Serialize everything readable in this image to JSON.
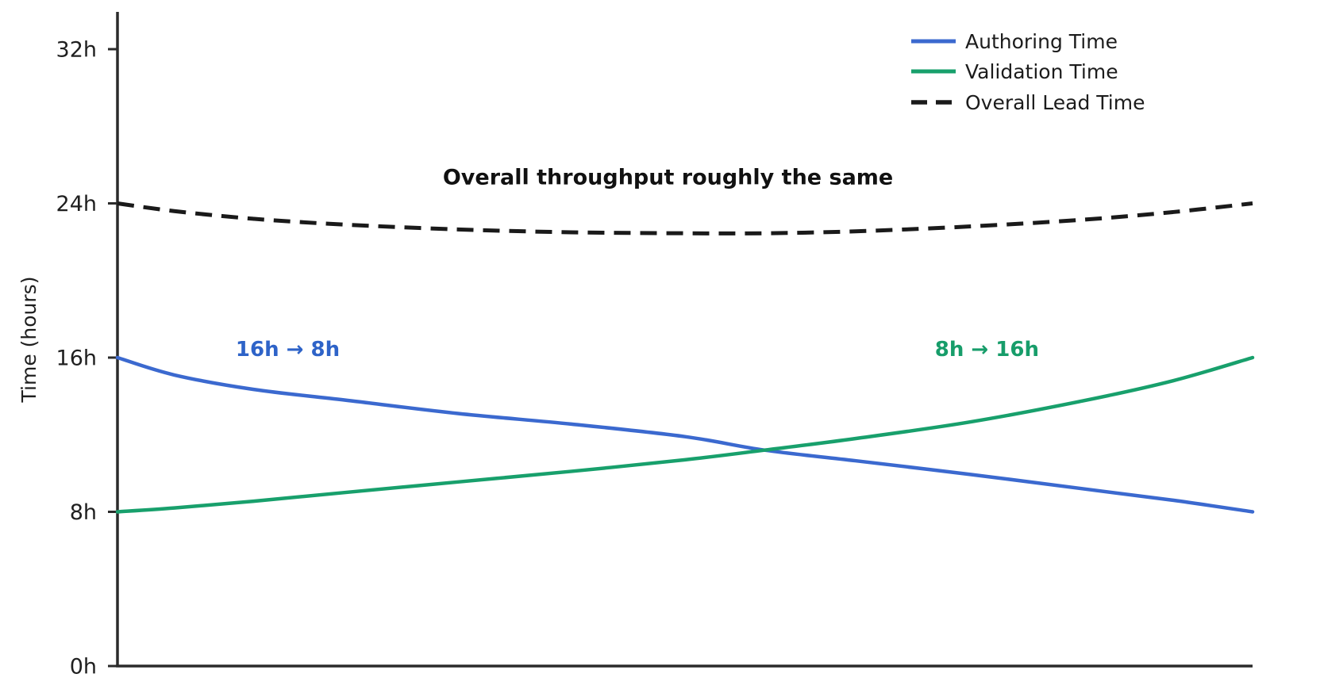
{
  "chart_data": {
    "type": "line",
    "ylabel": "Time (hours)",
    "ylim": [
      0,
      34
    ],
    "grid": false,
    "legend_position": "top-right",
    "yticks": [
      {
        "label": "0h",
        "hours": 0
      },
      {
        "label": "8h",
        "hours": 8
      },
      {
        "label": "16h",
        "hours": 16
      },
      {
        "label": "24h",
        "hours": 24
      },
      {
        "label": "32h",
        "hours": 32
      }
    ],
    "x_pct": [
      0,
      5,
      12,
      20,
      30,
      40,
      50,
      57,
      65,
      75,
      85,
      93,
      100
    ],
    "series": [
      {
        "name": "Authoring Time",
        "color": "#3b69cf",
        "dashed": false,
        "values": [
          16.0,
          15.1,
          14.35,
          13.8,
          13.1,
          12.55,
          11.9,
          11.2,
          10.65,
          9.95,
          9.2,
          8.6,
          8.0
        ]
      },
      {
        "name": "Validation Time",
        "color": "#18a06c",
        "dashed": false,
        "values": [
          8.0,
          8.2,
          8.55,
          9.0,
          9.55,
          10.1,
          10.7,
          11.2,
          11.8,
          12.65,
          13.75,
          14.8,
          16.0
        ]
      },
      {
        "name": "Overall Lead Time",
        "color": "#1a1a1a",
        "dashed": true,
        "values": [
          24.0,
          23.6,
          23.2,
          22.9,
          22.65,
          22.5,
          22.45,
          22.45,
          22.55,
          22.8,
          23.15,
          23.55,
          24.0
        ]
      }
    ],
    "annotations": [
      {
        "text": "16h → 8h",
        "color": "#2e63c8",
        "x_pct": 15.0,
        "hours": 16.45
      },
      {
        "text": "8h → 16h",
        "color": "#179d6a",
        "x_pct": 76.6,
        "hours": 16.45
      },
      {
        "text": "Overall throughput roughly the same",
        "color": "#111111",
        "x_pct": 48.5,
        "hours": 25.35
      }
    ],
    "legend": {
      "entries": [
        {
          "label": "Authoring Time"
        },
        {
          "label": "Validation Time"
        },
        {
          "label": "Overall Lead Time"
        }
      ]
    }
  }
}
